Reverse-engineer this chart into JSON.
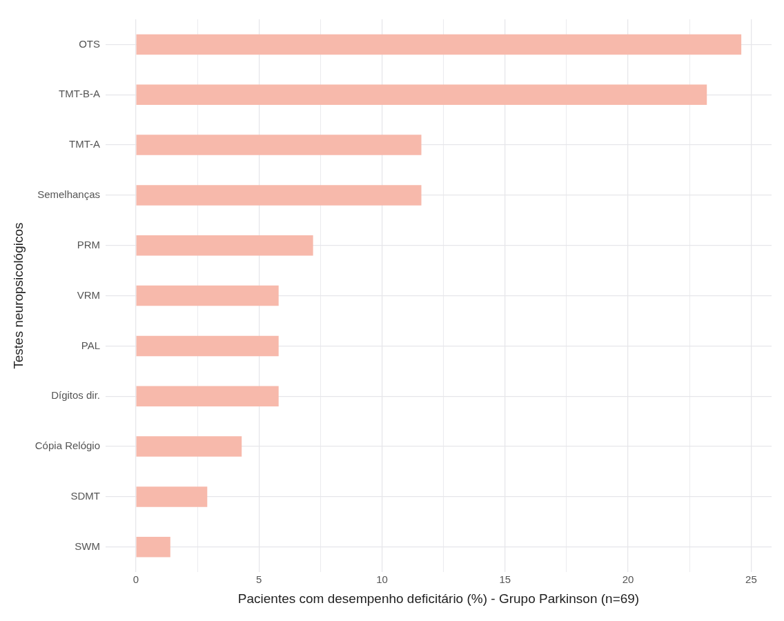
{
  "chart_data": {
    "type": "bar",
    "orientation": "horizontal",
    "xlabel": "Pacientes com desempenho deficitário (%) - Grupo Parkinson (n=69)",
    "ylabel": "Testes neuropsicológicos",
    "categories": [
      "OTS",
      "TMT-B-A",
      "TMT-A",
      "Semelhanças",
      "PRM",
      "VRM",
      "PAL",
      "Dígitos dir.",
      "Cópia Relógio",
      "SDMT",
      "SWM"
    ],
    "values": [
      24.6,
      23.2,
      11.6,
      11.6,
      7.2,
      5.8,
      5.8,
      5.8,
      4.3,
      2.9,
      1.4
    ],
    "color": "#f7b9ab",
    "xlim": [
      -1.23,
      25.83
    ],
    "xticks": [
      0,
      {
        "value": 2.5,
        "label": null
      },
      5,
      {
        "value": 7.5,
        "label": null
      },
      10,
      {
        "value": 12.5,
        "label": null
      },
      15,
      {
        "value": 17.5,
        "label": null
      },
      20,
      {
        "value": 22.5,
        "label": null
      },
      25
    ],
    "grid": true
  }
}
